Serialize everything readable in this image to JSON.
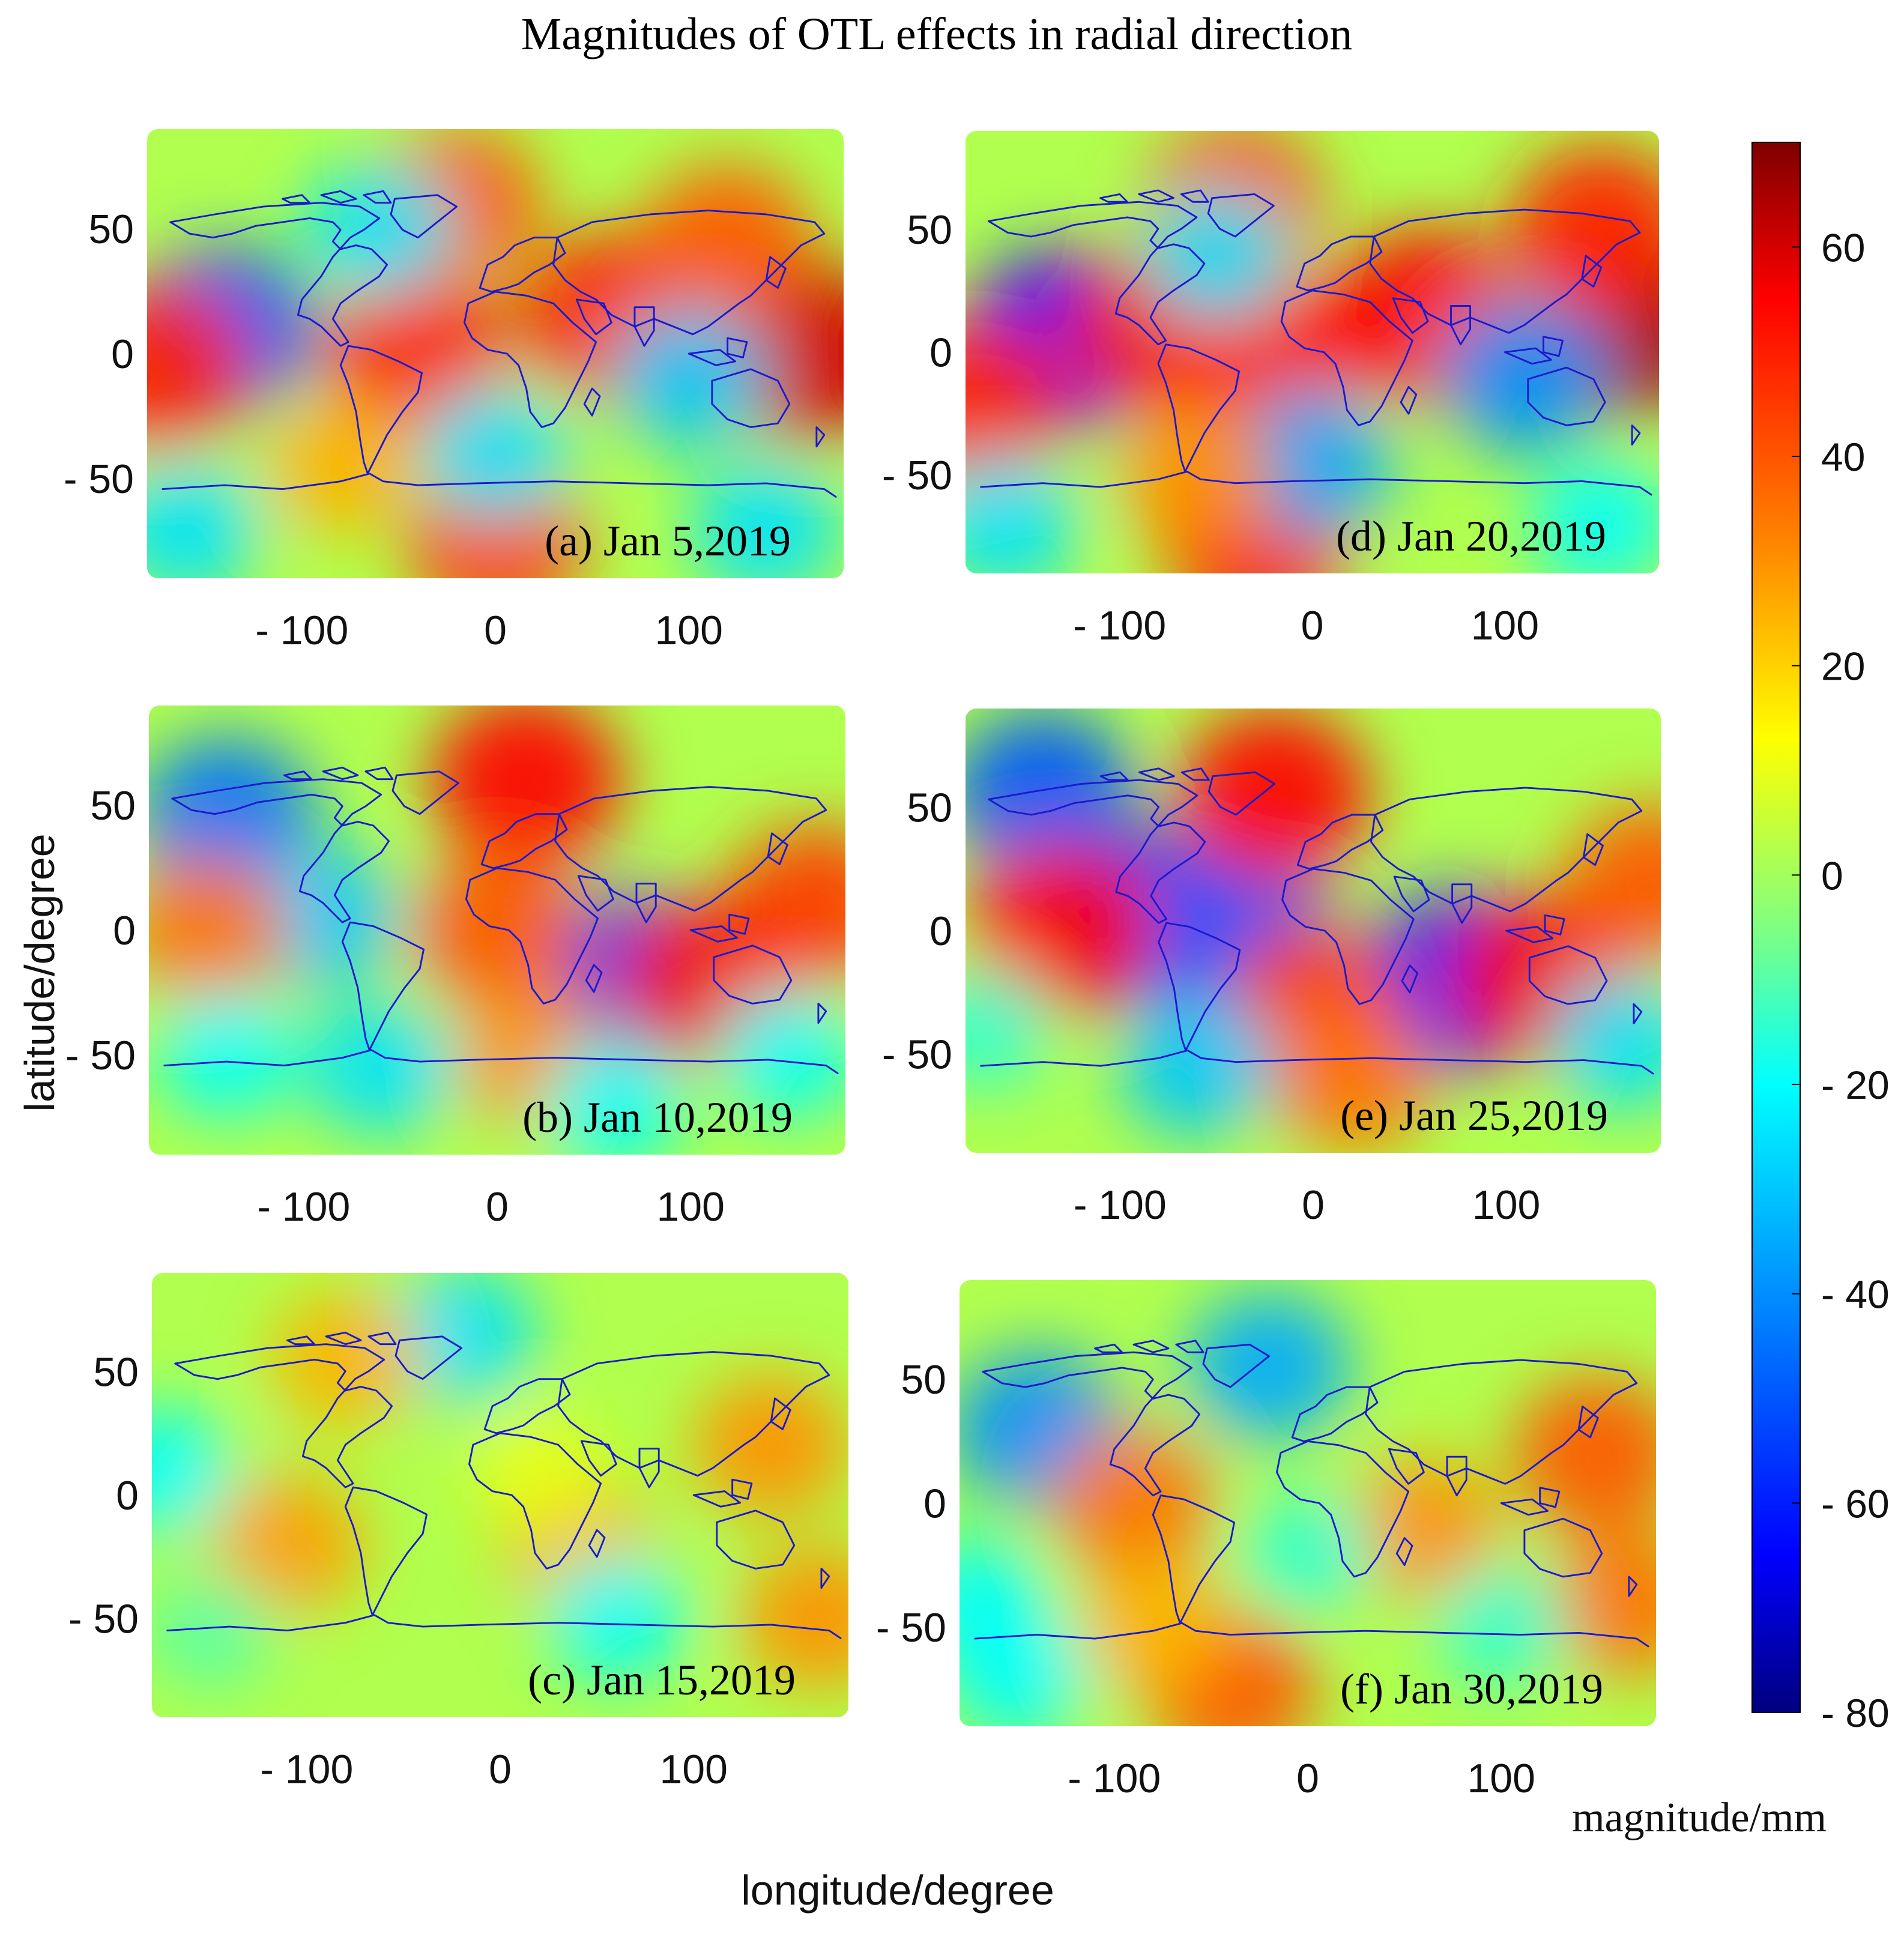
{
  "chart_data": {
    "type": "heatmap",
    "title": "Magnitudes of OTL effects in radial direction",
    "xlabel": "longitude/degree",
    "ylabel": "latitude/degree",
    "x_ticks": [
      "- 100",
      "0",
      "100"
    ],
    "x_tick_values": [
      -100,
      0,
      100
    ],
    "y_ticks": [
      "50",
      "0",
      "- 50"
    ],
    "y_tick_values": [
      50,
      0,
      -50
    ],
    "xlim": [
      -180,
      180
    ],
    "ylim": [
      -90,
      90
    ],
    "colorbar": {
      "label": "magnitude/mm",
      "range": [
        -80,
        70
      ],
      "ticks": [
        "60",
        "40",
        "20",
        "0",
        "- 20",
        "- 40",
        "- 60",
        "- 80"
      ],
      "tick_values": [
        60,
        40,
        20,
        0,
        -20,
        -40,
        -60,
        -80
      ],
      "colormap": [
        "#00007f",
        "#0000ff",
        "#0080ff",
        "#00ffff",
        "#80ff80",
        "#ffff00",
        "#ff8000",
        "#ff0000",
        "#7f0000"
      ]
    },
    "panels": [
      {
        "label": "(a) Jan 5,2019",
        "blobs": [
          {
            "lon": -140,
            "lat": 10,
            "value": -50
          },
          {
            "lon": -40,
            "lat": 0,
            "value": 50
          },
          {
            "lon": 60,
            "lat": 15,
            "value": 50
          },
          {
            "lon": 165,
            "lat": 0,
            "value": 60
          },
          {
            "lon": -175,
            "lat": -5,
            "value": 50
          },
          {
            "lon": 120,
            "lat": 45,
            "value": 40
          },
          {
            "lon": -20,
            "lat": 60,
            "value": 40
          },
          {
            "lon": 0,
            "lat": -75,
            "value": 45
          },
          {
            "lon": 100,
            "lat": -10,
            "value": -30
          },
          {
            "lon": 0,
            "lat": -40,
            "value": -25
          },
          {
            "lon": -60,
            "lat": 50,
            "value": -25
          },
          {
            "lon": -160,
            "lat": -70,
            "value": -25
          },
          {
            "lon": 140,
            "lat": -70,
            "value": -25
          },
          {
            "lon": -80,
            "lat": -45,
            "value": 25
          }
        ]
      },
      {
        "label": "(b) Jan 10,2019",
        "blobs": [
          {
            "lon": -140,
            "lat": 45,
            "value": -45
          },
          {
            "lon": -90,
            "lat": 5,
            "value": -30
          },
          {
            "lon": 70,
            "lat": -20,
            "value": -55
          },
          {
            "lon": 15,
            "lat": 60,
            "value": 55
          },
          {
            "lon": 0,
            "lat": 0,
            "value": 40
          },
          {
            "lon": 165,
            "lat": 10,
            "value": 45
          },
          {
            "lon": -150,
            "lat": 0,
            "value": 35
          },
          {
            "lon": 20,
            "lat": -50,
            "value": 30
          },
          {
            "lon": 110,
            "lat": -20,
            "value": 50
          },
          {
            "lon": -140,
            "lat": -50,
            "value": -20
          },
          {
            "lon": -60,
            "lat": -55,
            "value": -25
          },
          {
            "lon": 150,
            "lat": -50,
            "value": -20
          },
          {
            "lon": 60,
            "lat": -70,
            "value": -20
          }
        ]
      },
      {
        "label": "(c) Jan 15,2019",
        "blobs": [
          {
            "lon": -110,
            "lat": -20,
            "value": 28
          },
          {
            "lon": -175,
            "lat": 10,
            "value": -20
          },
          {
            "lon": -20,
            "lat": 65,
            "value": -25
          },
          {
            "lon": 140,
            "lat": 20,
            "value": 30
          },
          {
            "lon": 165,
            "lat": -50,
            "value": 30
          },
          {
            "lon": 40,
            "lat": -20,
            "value": 25
          },
          {
            "lon": -80,
            "lat": 55,
            "value": 25
          },
          {
            "lon": 60,
            "lat": -50,
            "value": -20
          },
          {
            "lon": -150,
            "lat": -55,
            "value": -10
          },
          {
            "lon": 20,
            "lat": 10,
            "value": 10
          }
        ]
      },
      {
        "label": "(d) Jan 20,2019",
        "blobs": [
          {
            "lon": -130,
            "lat": 5,
            "value": -65
          },
          {
            "lon": -20,
            "lat": 0,
            "value": 55
          },
          {
            "lon": -80,
            "lat": 10,
            "value": 50
          },
          {
            "lon": 60,
            "lat": 15,
            "value": 55
          },
          {
            "lon": 165,
            "lat": 10,
            "value": 65
          },
          {
            "lon": 150,
            "lat": 50,
            "value": 50
          },
          {
            "lon": -175,
            "lat": -20,
            "value": 50
          },
          {
            "lon": -40,
            "lat": 60,
            "value": 45
          },
          {
            "lon": -30,
            "lat": -75,
            "value": 55
          },
          {
            "lon": 0,
            "lat": -45,
            "value": -35
          },
          {
            "lon": 110,
            "lat": -10,
            "value": -40
          },
          {
            "lon": -60,
            "lat": -50,
            "value": 30
          },
          {
            "lon": -160,
            "lat": -70,
            "value": -25
          },
          {
            "lon": 150,
            "lat": -70,
            "value": -20
          },
          {
            "lon": -50,
            "lat": 40,
            "value": -25
          }
        ]
      },
      {
        "label": "(e) Jan 25,2019",
        "blobs": [
          {
            "lon": -140,
            "lat": 55,
            "value": -50
          },
          {
            "lon": -85,
            "lat": 5,
            "value": -60
          },
          {
            "lon": -40,
            "lat": 5,
            "value": -50
          },
          {
            "lon": 75,
            "lat": -20,
            "value": -60
          },
          {
            "lon": -130,
            "lat": 0,
            "value": 55
          },
          {
            "lon": -20,
            "lat": 55,
            "value": 55
          },
          {
            "lon": 0,
            "lat": -30,
            "value": 45
          },
          {
            "lon": 20,
            "lat": -60,
            "value": 35
          },
          {
            "lon": 120,
            "lat": -20,
            "value": 55
          },
          {
            "lon": 175,
            "lat": 20,
            "value": 40
          },
          {
            "lon": -60,
            "lat": -55,
            "value": -30
          },
          {
            "lon": 160,
            "lat": -45,
            "value": -25
          },
          {
            "lon": -170,
            "lat": -40,
            "value": -15
          }
        ]
      },
      {
        "label": "(f) Jan 30,2019",
        "blobs": [
          {
            "lon": -140,
            "lat": 30,
            "value": -40
          },
          {
            "lon": -20,
            "lat": 55,
            "value": -35
          },
          {
            "lon": -90,
            "lat": 0,
            "value": 35
          },
          {
            "lon": 60,
            "lat": -10,
            "value": 30
          },
          {
            "lon": 150,
            "lat": 20,
            "value": 40
          },
          {
            "lon": 165,
            "lat": -40,
            "value": 35
          },
          {
            "lon": -40,
            "lat": -75,
            "value": 40
          },
          {
            "lon": -80,
            "lat": -50,
            "value": 25
          },
          {
            "lon": 0,
            "lat": -20,
            "value": -15
          },
          {
            "lon": 100,
            "lat": -50,
            "value": -15
          },
          {
            "lon": -170,
            "lat": -40,
            "value": -20
          },
          {
            "lon": -150,
            "lat": -70,
            "value": -20
          }
        ]
      }
    ]
  }
}
